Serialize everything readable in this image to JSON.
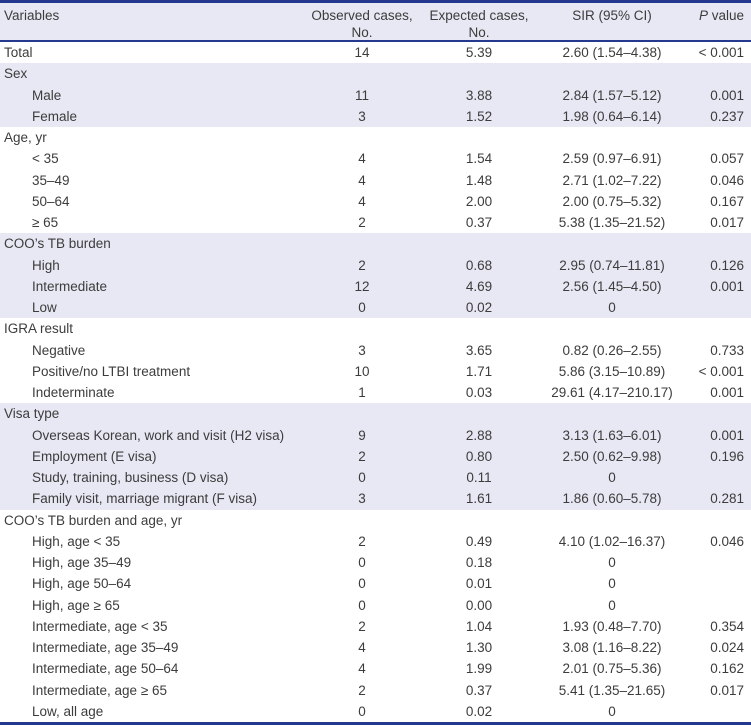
{
  "table": {
    "colors": {
      "rule_navy": "#24388f",
      "band_lavender": "#e7e8f3",
      "text": "#3c3c3c"
    },
    "headers": {
      "variables": "Variables",
      "observed_line1": "Observed cases,",
      "observed_line2": "No.",
      "expected_line1": "Expected cases,",
      "expected_line2": "No.",
      "sir": "SIR (95% CI)",
      "p_italic": "P",
      "p_rest": " value"
    },
    "rows": [
      {
        "type": "total",
        "label": "Total",
        "observed": "14",
        "expected": "5.39",
        "sir": "2.60 (1.54–4.38)",
        "p": "< 0.001"
      },
      {
        "type": "section",
        "label": "Sex"
      },
      {
        "type": "item",
        "label": "Male",
        "observed": "11",
        "expected": "3.88",
        "sir": "2.84 (1.57–5.12)",
        "p": "0.001"
      },
      {
        "type": "item",
        "label": "Female",
        "observed": "3",
        "expected": "1.52",
        "sir": "1.98 (0.64–6.14)",
        "p": "0.237"
      },
      {
        "type": "section",
        "label": "Age, yr"
      },
      {
        "type": "item",
        "label": "< 35",
        "observed": "4",
        "expected": "1.54",
        "sir": "2.59 (0.97–6.91)",
        "p": "0.057"
      },
      {
        "type": "item",
        "label": "35–49",
        "observed": "4",
        "expected": "1.48",
        "sir": "2.71 (1.02–7.22)",
        "p": "0.046"
      },
      {
        "type": "item",
        "label": "50–64",
        "observed": "4",
        "expected": "2.00",
        "sir": "2.00 (0.75–5.32)",
        "p": "0.167"
      },
      {
        "type": "item",
        "label": "≥ 65",
        "observed": "2",
        "expected": "0.37",
        "sir": "5.38 (1.35–21.52)",
        "p": "0.017"
      },
      {
        "type": "section",
        "label": "COO’s TB burden"
      },
      {
        "type": "item",
        "label": "High",
        "observed": "2",
        "expected": "0.68",
        "sir": "2.95 (0.74–11.81)",
        "p": "0.126"
      },
      {
        "type": "item",
        "label": "Intermediate",
        "observed": "12",
        "expected": "4.69",
        "sir": "2.56 (1.45–4.50)",
        "p": "0.001"
      },
      {
        "type": "item",
        "label": "Low",
        "observed": "0",
        "expected": "0.02",
        "sir": "0",
        "p": ""
      },
      {
        "type": "section",
        "label": "IGRA result"
      },
      {
        "type": "item",
        "label": "Negative",
        "observed": "3",
        "expected": "3.65",
        "sir": "0.82 (0.26–2.55)",
        "p": "0.733"
      },
      {
        "type": "item",
        "label": "Positive/no LTBI treatment",
        "observed": "10",
        "expected": "1.71",
        "sir": "5.86 (3.15–10.89)",
        "p": "< 0.001"
      },
      {
        "type": "item",
        "label": "Indeterminate",
        "observed": "1",
        "expected": "0.03",
        "sir": "29.61 (4.17–210.17)",
        "p": "0.001"
      },
      {
        "type": "section",
        "label": "Visa type"
      },
      {
        "type": "item",
        "label": "Overseas Korean, work and visit (H2 visa)",
        "observed": "9",
        "expected": "2.88",
        "sir": "3.13 (1.63–6.01)",
        "p": "0.001"
      },
      {
        "type": "item",
        "label": "Employment (E visa)",
        "observed": "2",
        "expected": "0.80",
        "sir": "2.50 (0.62–9.98)",
        "p": "0.196"
      },
      {
        "type": "item",
        "label": "Study, training, business (D visa)",
        "observed": "0",
        "expected": "0.11",
        "sir": "0",
        "p": ""
      },
      {
        "type": "item",
        "label": "Family visit, marriage migrant (F visa)",
        "observed": "3",
        "expected": "1.61",
        "sir": "1.86 (0.60–5.78)",
        "p": "0.281"
      },
      {
        "type": "section",
        "label": "COO’s TB burden and age, yr"
      },
      {
        "type": "item",
        "label": "High, age < 35",
        "observed": "2",
        "expected": "0.49",
        "sir": "4.10 (1.02–16.37)",
        "p": "0.046"
      },
      {
        "type": "item",
        "label": "High, age 35–49",
        "observed": "0",
        "expected": "0.18",
        "sir": "0",
        "p": ""
      },
      {
        "type": "item",
        "label": "High, age 50–64",
        "observed": "0",
        "expected": "0.01",
        "sir": "0",
        "p": ""
      },
      {
        "type": "item",
        "label": "High, age ≥ 65",
        "observed": "0",
        "expected": "0.00",
        "sir": "0",
        "p": ""
      },
      {
        "type": "item",
        "label": "Intermediate, age < 35",
        "observed": "2",
        "expected": "1.04",
        "sir": "1.93 (0.48–7.70)",
        "p": "0.354"
      },
      {
        "type": "item",
        "label": "Intermediate, age 35–49",
        "observed": "4",
        "expected": "1.30",
        "sir": "3.08 (1.16–8.22)",
        "p": "0.024"
      },
      {
        "type": "item",
        "label": "Intermediate, age 50–64",
        "observed": "4",
        "expected": "1.99",
        "sir": "2.01 (0.75–5.36)",
        "p": "0.162"
      },
      {
        "type": "item",
        "label": "Intermediate, age ≥ 65",
        "observed": "2",
        "expected": "0.37",
        "sir": "5.41 (1.35–21.65)",
        "p": "0.017"
      },
      {
        "type": "item",
        "label": "Low, all age",
        "observed": "0",
        "expected": "0.02",
        "sir": "0",
        "p": ""
      }
    ]
  }
}
